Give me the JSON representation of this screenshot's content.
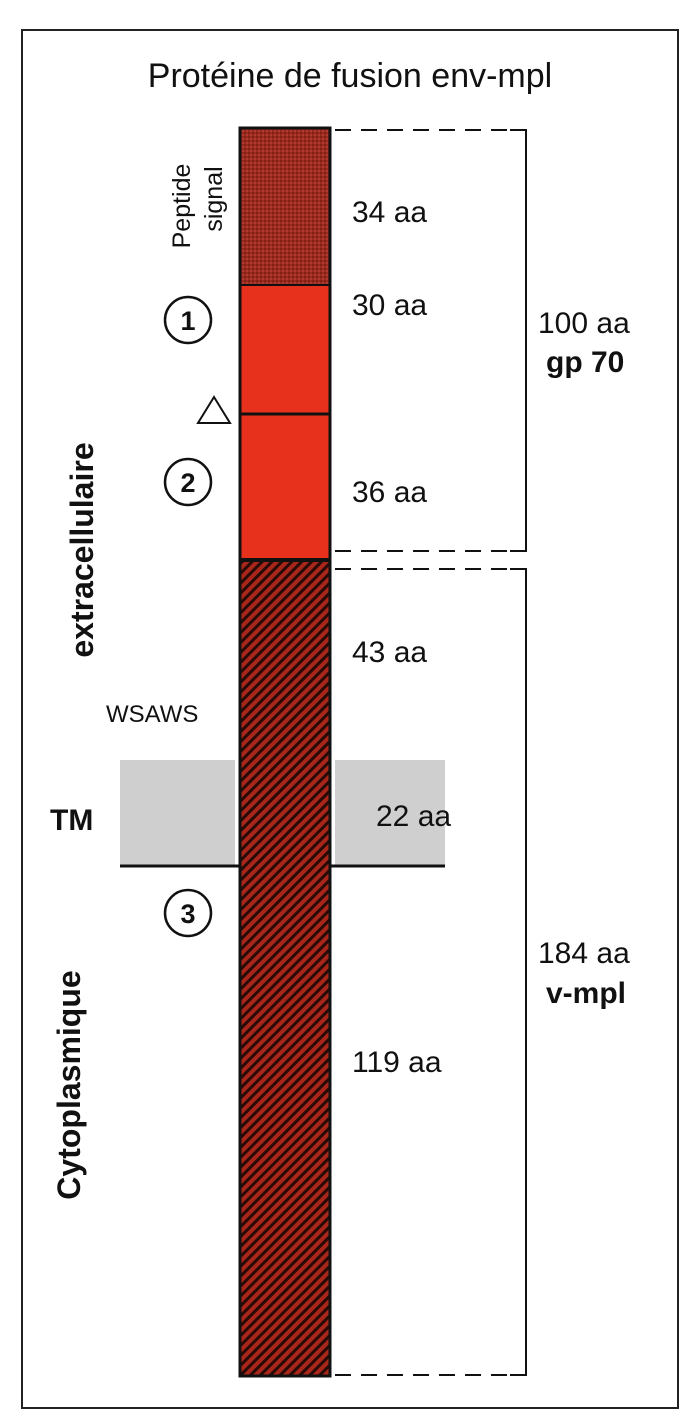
{
  "title": "Protéine de fusion env-mpl",
  "segments": [
    {
      "label": "34 aa",
      "aa": 34,
      "color": "#9b2a1e",
      "pattern": "dots"
    },
    {
      "label": "30 aa",
      "aa": 30,
      "color": "#e8311c",
      "pattern": "solid"
    },
    {
      "label": "36 aa",
      "aa": 36,
      "color": "#e8311c",
      "pattern": "solid"
    },
    {
      "label": "43 aa",
      "aa": 43,
      "color": "#9a2418",
      "pattern": "hatch"
    },
    {
      "label": "22 aa",
      "aa": 22,
      "color": "#9a2418",
      "pattern": "hatch"
    },
    {
      "label": "119 aa",
      "aa": 119,
      "color": "#9a2418",
      "pattern": "hatch"
    }
  ],
  "labels": {
    "peptide_line1": "Peptide",
    "peptide_line2": "signal",
    "extracellular": "extracellulaire",
    "cytoplasmic": "Cytoplasmique",
    "wsaws": "WSAWS",
    "tm": "TM",
    "domain1": "1",
    "domain2": "2",
    "domain3": "3"
  },
  "brackets": {
    "gp70_count": "100 aa",
    "gp70_name": "gp 70",
    "vmpl_count": "184 aa",
    "vmpl_name": "v-mpl"
  },
  "colors": {
    "signal_peptide": "#9b2a1e",
    "gp70_domain": "#e8311c",
    "vmpl_domain": "#9a2418",
    "membrane": "#cfcfcf"
  }
}
